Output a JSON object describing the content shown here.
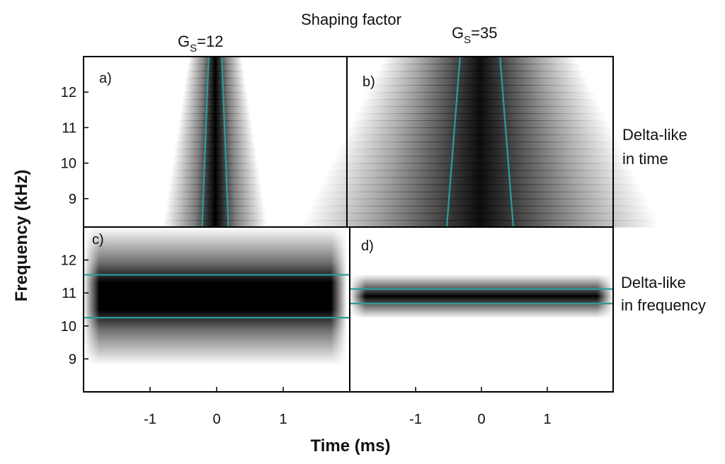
{
  "figure": {
    "title": "Shaping factor",
    "ylabel": "Frequency (kHz)",
    "xlabel": "Time (ms)",
    "columns": [
      {
        "label_g": "G",
        "label_sub": "S",
        "label_val": "=12"
      },
      {
        "label_g": "G",
        "label_sub": "S",
        "label_val": "=35"
      }
    ],
    "row_labels": [
      {
        "line1": "Delta-like",
        "line2": "in time"
      },
      {
        "line1": "Delta-like",
        "line2": "in frequency"
      }
    ],
    "colors": {
      "overlay": "#2a9d9a",
      "frame": "#000000",
      "map": "#000000"
    }
  },
  "chart_data": [
    {
      "id": "a",
      "panel_label": "a)",
      "type": "heatmap",
      "xlim": [
        -2,
        2
      ],
      "ylim": [
        8.2,
        13
      ],
      "yticks": [
        9,
        10,
        11,
        12
      ],
      "band": {
        "orientation": "vertical",
        "center_time": 0.0,
        "width_at_low_freq": 0.5,
        "width_at_high_freq": 0.25
      },
      "boundaries": [
        {
          "x": [
            -0.2,
            -0.1
          ],
          "y": [
            8.2,
            13
          ]
        },
        {
          "x": [
            0.2,
            0.1
          ],
          "y": [
            8.2,
            13
          ]
        }
      ]
    },
    {
      "id": "b",
      "panel_label": "b)",
      "type": "heatmap",
      "xlim": [
        -2,
        2
      ],
      "ylim": [
        8.2,
        13
      ],
      "yticks": [
        9,
        10,
        11,
        12
      ],
      "band": {
        "orientation": "vertical",
        "center_time": 0.0,
        "width_at_low_freq": 1.7,
        "width_at_high_freq": 0.9
      },
      "boundaries": [
        {
          "x": [
            -0.5,
            -0.3
          ],
          "y": [
            8.2,
            13
          ]
        },
        {
          "x": [
            0.5,
            0.3
          ],
          "y": [
            8.2,
            13
          ]
        }
      ]
    },
    {
      "id": "c",
      "panel_label": "c)",
      "type": "heatmap",
      "xlim": [
        -2,
        2
      ],
      "ylim": [
        8,
        13
      ],
      "yticks": [
        9,
        10,
        11,
        12
      ],
      "xticks": [
        -1,
        0,
        1
      ],
      "band": {
        "orientation": "horizontal",
        "center_freq": 10.9,
        "height": 1.1
      },
      "boundaries": [
        {
          "x": [
            -2,
            2
          ],
          "y": [
            11.55,
            11.55
          ]
        },
        {
          "x": [
            -2,
            2
          ],
          "y": [
            10.25,
            10.25
          ]
        }
      ]
    },
    {
      "id": "d",
      "panel_label": "d)",
      "type": "heatmap",
      "xlim": [
        -2,
        2
      ],
      "ylim": [
        8,
        13
      ],
      "yticks": [
        9,
        10,
        11,
        12
      ],
      "xticks": [
        -1,
        0,
        1
      ],
      "band": {
        "orientation": "horizontal",
        "center_freq": 10.9,
        "height": 0.35
      },
      "boundaries": [
        {
          "x": [
            -2,
            2
          ],
          "y": [
            11.12,
            11.12
          ]
        },
        {
          "x": [
            -2,
            2
          ],
          "y": [
            10.68,
            10.68
          ]
        }
      ]
    }
  ]
}
